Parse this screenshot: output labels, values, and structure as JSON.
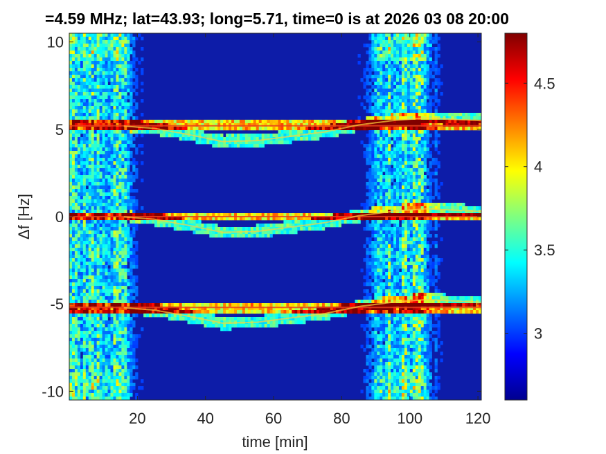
{
  "chart_data": {
    "type": "heatmap",
    "title": "=4.59 MHz;  lat=43.93; long=5.71, time=0 is at 2026 03 08 20:00",
    "xlabel": "time [min]",
    "ylabel": "Δf [Hz]",
    "xlim": [
      0,
      121
    ],
    "ylim": [
      -10.5,
      10.5
    ],
    "x_ticks": [
      20,
      40,
      60,
      80,
      100,
      120
    ],
    "y_ticks": [
      10,
      5,
      0,
      -5,
      -10
    ],
    "colorbar": {
      "colormap": "jet",
      "range": [
        2.6,
        4.8
      ],
      "ticks": [
        3,
        3.5,
        4,
        4.5
      ]
    },
    "features": {
      "carrier_lines_hz": [
        5.2,
        0,
        -5.2
      ],
      "bright_time_bands_min": [
        [
          0,
          16
        ],
        [
          91,
          104
        ]
      ],
      "doppler_trace": {
        "name": "",
        "time_min": [
          15,
          25,
          35,
          45,
          55,
          65,
          75,
          85,
          95,
          105,
          115,
          121
        ],
        "offset_hz": [
          0,
          -0.15,
          -0.5,
          -0.9,
          -0.85,
          -0.6,
          -0.35,
          0.05,
          0.3,
          0.45,
          0.35,
          0.3
        ]
      }
    }
  }
}
